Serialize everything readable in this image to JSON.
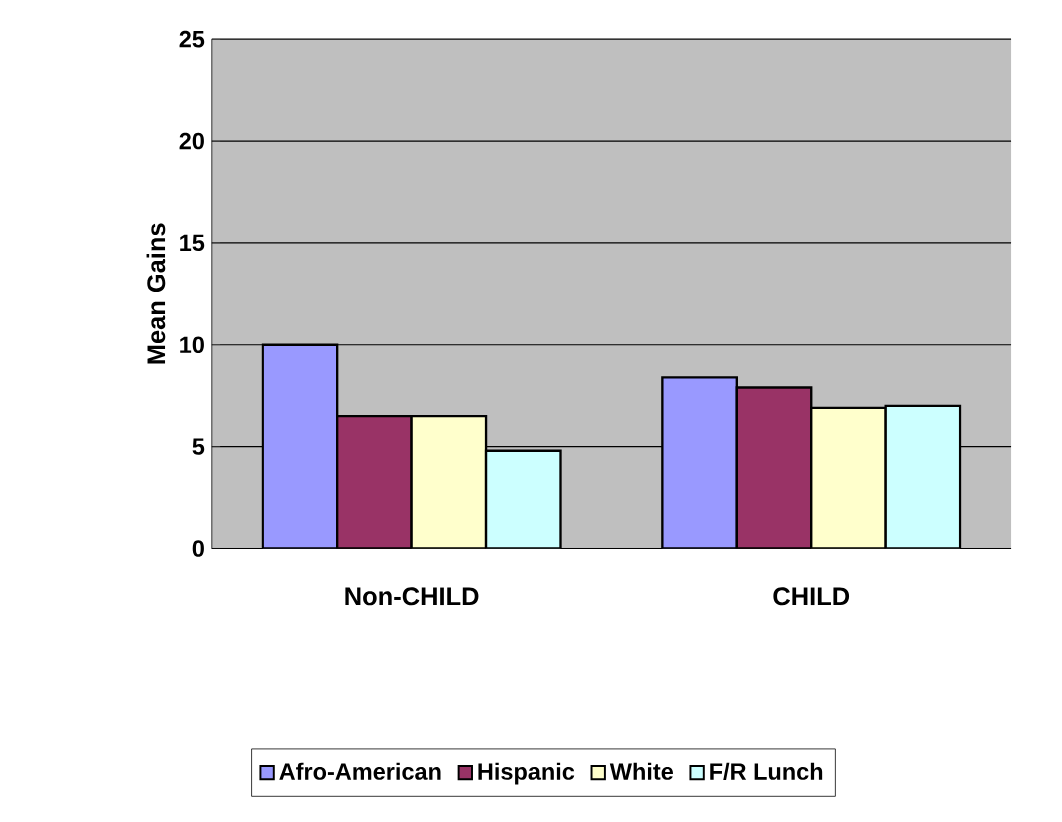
{
  "chart_data": {
    "type": "bar",
    "ylabel": "Mean Gains",
    "categories": [
      "Non-CHILD",
      "CHILD"
    ],
    "series": [
      {
        "name": "Afro-American",
        "color": "#9999ff",
        "values": [
          10,
          8.4
        ]
      },
      {
        "name": "Hispanic",
        "color": "#993366",
        "values": [
          6.5,
          7.9
        ]
      },
      {
        "name": "White",
        "color": "#ffffcc",
        "values": [
          6.5,
          6.9
        ]
      },
      {
        "name": "F/R Lunch",
        "color": "#ccffff",
        "values": [
          4.8,
          7.0
        ]
      }
    ],
    "ylim": [
      0,
      25
    ],
    "yticks": [
      0,
      5,
      10,
      15,
      20,
      25
    ],
    "grid": "y",
    "legend": "bottom"
  }
}
